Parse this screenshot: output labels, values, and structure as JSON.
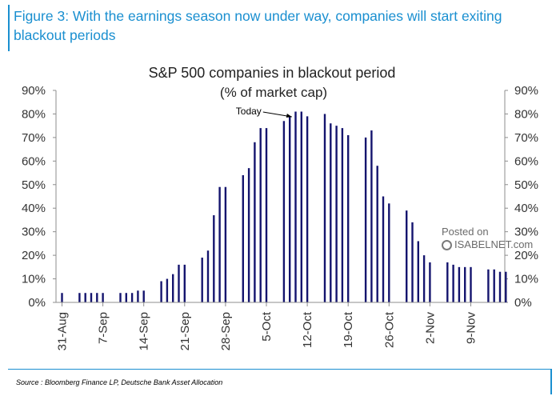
{
  "figure": {
    "heading": "Figure 3: With the earnings season now under way, companies will start exiting blackout periods",
    "source": "Source : Bloomberg Finance LP, Deutsche Bank Asset Allocation"
  },
  "watermark": {
    "line1": "Posted on",
    "line2": "ISABELNET.com"
  },
  "colors": {
    "bar": "#14146e",
    "heading": "#1a8fd0",
    "axis": "#8c8c8c"
  },
  "chart_data": {
    "type": "bar",
    "title": "S&P 500 companies in blackout period",
    "subtitle": "(% of market cap)",
    "start_date": "2019-08-31",
    "x": [
      "2019-08-31",
      "2019-09-03",
      "2019-09-04",
      "2019-09-05",
      "2019-09-06",
      "2019-09-07",
      "2019-09-10",
      "2019-09-11",
      "2019-09-12",
      "2019-09-13",
      "2019-09-14",
      "2019-09-17",
      "2019-09-18",
      "2019-09-19",
      "2019-09-20",
      "2019-09-21",
      "2019-09-24",
      "2019-09-25",
      "2019-09-26",
      "2019-09-27",
      "2019-09-28",
      "2019-10-01",
      "2019-10-02",
      "2019-10-03",
      "2019-10-04",
      "2019-10-05",
      "2019-10-08",
      "2019-10-09",
      "2019-10-10",
      "2019-10-11",
      "2019-10-12",
      "2019-10-15",
      "2019-10-16",
      "2019-10-17",
      "2019-10-18",
      "2019-10-19",
      "2019-10-22",
      "2019-10-23",
      "2019-10-24",
      "2019-10-25",
      "2019-10-26",
      "2019-10-29",
      "2019-10-30",
      "2019-10-31",
      "2019-11-01",
      "2019-11-02",
      "2019-11-05",
      "2019-11-06",
      "2019-11-07",
      "2019-11-08",
      "2019-11-09",
      "2019-11-12",
      "2019-11-13",
      "2019-11-14",
      "2019-11-15"
    ],
    "values": [
      4,
      4,
      4,
      4,
      4,
      4,
      4,
      4,
      4,
      5,
      5,
      9,
      10,
      12,
      16,
      16,
      19,
      22,
      37,
      49,
      49,
      54,
      57,
      68,
      74,
      74,
      77,
      79,
      81,
      81,
      79,
      80,
      76,
      75,
      74,
      71,
      70,
      73,
      58,
      45,
      42,
      39,
      34,
      26,
      20,
      17,
      17,
      16,
      15,
      15,
      15,
      14,
      14,
      13,
      13
    ],
    "xtick_labels": [
      "31-Aug",
      "7-Sep",
      "14-Sep",
      "21-Sep",
      "28-Sep",
      "5-Oct",
      "12-Oct",
      "19-Oct",
      "26-Oct",
      "2-Nov",
      "9-Nov"
    ],
    "xtick_dates": [
      "2019-08-31",
      "2019-09-07",
      "2019-09-14",
      "2019-09-21",
      "2019-09-28",
      "2019-10-05",
      "2019-10-12",
      "2019-10-19",
      "2019-10-26",
      "2019-11-02",
      "2019-11-09"
    ],
    "x_range": [
      "2019-08-31",
      "2019-11-16"
    ],
    "yticks": [
      0,
      10,
      20,
      30,
      40,
      50,
      60,
      70,
      80,
      90
    ],
    "ylim": [
      0,
      90
    ],
    "y_tick_suffix": "%",
    "right_axis": true,
    "grid": false,
    "annotations": [
      {
        "text": "Today",
        "x": "2019-10-11"
      }
    ]
  }
}
